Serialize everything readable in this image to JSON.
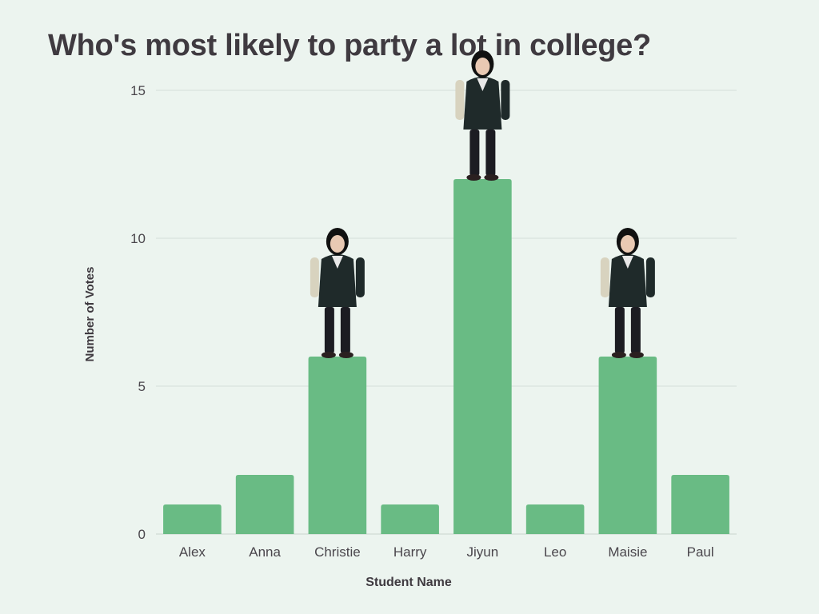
{
  "chart_data": {
    "type": "bar",
    "title": "Who's most likely to party a lot in college?",
    "xlabel": "Student Name",
    "ylabel": "Number of Votes",
    "categories": [
      "Alex",
      "Anna",
      "Christie",
      "Harry",
      "Jiyun",
      "Leo",
      "Maisie",
      "Paul"
    ],
    "values": [
      1,
      2,
      6,
      1,
      12,
      1,
      6,
      2
    ],
    "ylim": [
      0,
      15
    ],
    "yticks": [
      0,
      5,
      10,
      15
    ],
    "grid": true,
    "bar_color": "#69bb84",
    "photo_bars": [
      "Christie",
      "Jiyun",
      "Maisie"
    ]
  }
}
